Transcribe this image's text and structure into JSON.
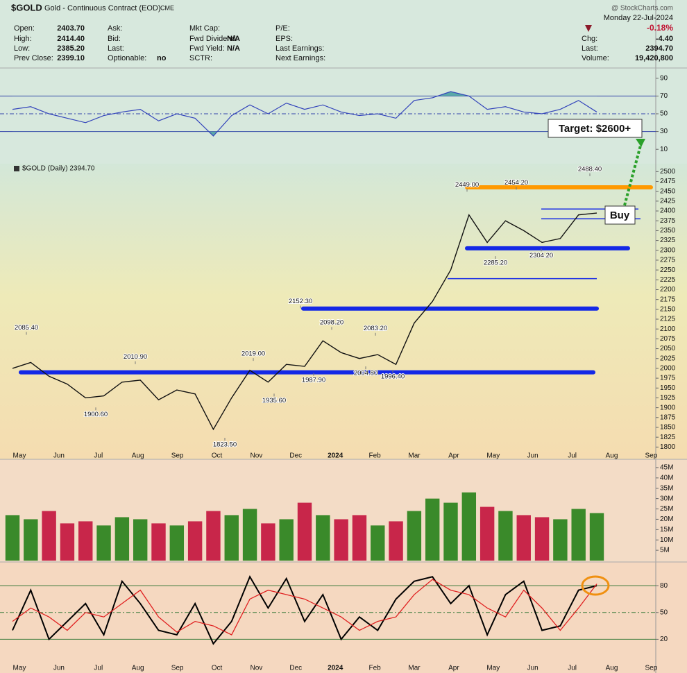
{
  "header": {
    "symbol": "$GOLD",
    "name": "Gold - Continuous Contract (EOD)",
    "exchange": "CME",
    "source": "@ StockCharts.com",
    "date": "Monday  22-Jul-2024",
    "change_pct": "-0.18%",
    "fields": [
      [
        {
          "label": "Open:",
          "value": "2403.70"
        },
        {
          "label": "High:",
          "value": "2414.40"
        },
        {
          "label": "Low:",
          "value": "2385.20"
        },
        {
          "label": "Prev Close:",
          "value": "2399.10"
        }
      ],
      [
        {
          "label": "Ask:"
        },
        {
          "label": "Bid:"
        },
        {
          "label": "Last:"
        },
        {
          "label": "Optionable:",
          "value": "no"
        }
      ],
      [
        {
          "label": "Mkt Cap:"
        },
        {
          "label": "Fwd Dividend:",
          "value": "N/A"
        },
        {
          "label": "Fwd Yield:",
          "value": "N/A"
        },
        {
          "label": "SCTR:"
        }
      ],
      [
        {
          "label": "P/E:"
        },
        {
          "label": "EPS:"
        },
        {
          "label": "Last Earnings:"
        },
        {
          "label": "Next Earnings:"
        }
      ],
      [
        {
          "label": "Chg:",
          "value": "-4.40"
        },
        {
          "label": "Last:",
          "value": "2394.70"
        },
        {
          "label": "Volume:",
          "value": "19,420,800"
        }
      ]
    ]
  },
  "x_axis": {
    "labels": [
      "May",
      "Jun",
      "Jul",
      "Aug",
      "Sep",
      "Oct",
      "Nov",
      "Dec",
      "2024",
      "Feb",
      "Mar",
      "Apr",
      "May",
      "Jun",
      "Jul",
      "Aug",
      "Sep"
    ]
  },
  "chart_data": [
    {
      "type": "line",
      "color": "#3344bb",
      "fill_color": "#5aa8a8",
      "categories": [
        null,
        null,
        null,
        null,
        null,
        null,
        null,
        null,
        null,
        null,
        null,
        null,
        null,
        null,
        null,
        null,
        null,
        null,
        null,
        null,
        null,
        null,
        null,
        null,
        null,
        null,
        null,
        null,
        null,
        null,
        null,
        null,
        null
      ],
      "values": [
        55,
        58,
        50,
        45,
        40,
        48,
        52,
        55,
        42,
        50,
        45,
        25,
        48,
        60,
        50,
        62,
        55,
        60,
        52,
        48,
        50,
        45,
        65,
        68,
        75,
        70,
        55,
        58,
        52,
        50,
        55,
        65,
        52
      ],
      "ylim": [
        0,
        100
      ],
      "yticks": [
        10,
        30,
        50,
        70,
        90
      ],
      "hlines": [
        70,
        50,
        30
      ]
    },
    {
      "type": "line",
      "title": "$GOLD (Daily) 2394.70",
      "color": "#111111",
      "categories": [
        null,
        null,
        null,
        null,
        null,
        null,
        null,
        null,
        null,
        null,
        null,
        null,
        null,
        null,
        null,
        null,
        null,
        null,
        null,
        null,
        null,
        null,
        null,
        null,
        null,
        null,
        null,
        null,
        null,
        null,
        null,
        null,
        null
      ],
      "values": [
        2000,
        2015,
        1980,
        1960,
        1925,
        1930,
        1965,
        1970,
        1920,
        1945,
        1935,
        1845,
        1925,
        1995,
        1965,
        2010,
        2005,
        2070,
        2040,
        2025,
        2035,
        2010,
        2115,
        2170,
        2250,
        2390,
        2320,
        2375,
        2350,
        2320,
        2330,
        2390,
        2394.7
      ],
      "ylim": [
        1790,
        2520
      ],
      "yticks": [
        1800,
        1825,
        1850,
        1875,
        1900,
        1925,
        1950,
        1975,
        2000,
        2025,
        2050,
        2075,
        2100,
        2125,
        2150,
        2175,
        2200,
        2225,
        2250,
        2275,
        2300,
        2325,
        2350,
        2375,
        2400,
        2425,
        2450,
        2475,
        2500
      ],
      "annotations": [
        {
          "value": 2085.4,
          "label": "2085.40"
        },
        {
          "value": 1900.6,
          "label": "1900.60"
        },
        {
          "value": 2010.9,
          "label": "2010.90"
        },
        {
          "value": 1823.5,
          "label": "1823.50"
        },
        {
          "value": 2019,
          "label": "2019.00"
        },
        {
          "value": 1935.6,
          "label": "1935.60"
        },
        {
          "value": 2152.3,
          "label": "2152.30"
        },
        {
          "value": 1987.9,
          "label": "1987.90"
        },
        {
          "value": 2098.2,
          "label": "2098.20"
        },
        {
          "value": 2004.8,
          "label": "2004.80"
        },
        {
          "value": 2083.2,
          "label": "2083.20"
        },
        {
          "value": 1996.4,
          "label": "1996.40"
        },
        {
          "value": 2449,
          "label": "2449.00"
        },
        {
          "value": 2454.2,
          "label": "2454.20"
        },
        {
          "value": 2285.2,
          "label": "2285.20"
        },
        {
          "value": 2304.2,
          "label": "2304.20"
        },
        {
          "value": 2488.4,
          "label": "2488.40"
        }
      ],
      "levels": [
        {
          "value": 1990,
          "color": "#1428e6",
          "style": "thick"
        },
        {
          "value": 2152,
          "color": "#1428e6",
          "style": "thick"
        },
        {
          "value": 2305,
          "color": "#1428e6",
          "style": "thick"
        },
        {
          "value": 2460,
          "color": "#ff9900",
          "style": "thick"
        },
        {
          "value": 2228,
          "color": "#1428e6",
          "style": "thin"
        },
        {
          "value": 2405,
          "color": "#1428e6",
          "style": "thin"
        },
        {
          "value": 2380,
          "color": "#1428e6",
          "style": "thin"
        }
      ],
      "callouts": [
        "Target: $2600+",
        "Buy"
      ]
    },
    {
      "type": "bar",
      "up_color": "#3a8a2a",
      "down_color": "#c8264a",
      "categories": [
        null,
        null,
        null,
        null,
        null,
        null,
        null,
        null,
        null,
        null,
        null,
        null,
        null,
        null,
        null,
        null,
        null,
        null,
        null,
        null,
        null,
        null,
        null,
        null,
        null,
        null,
        null,
        null,
        null,
        null,
        null,
        null,
        null
      ],
      "values": [
        22,
        20,
        24,
        18,
        19,
        17,
        21,
        20,
        18,
        17,
        19,
        24,
        22,
        25,
        18,
        20,
        28,
        22,
        20,
        22,
        17,
        19,
        24,
        30,
        28,
        33,
        26,
        24,
        22,
        21,
        20,
        25,
        23
      ],
      "ylim": [
        0,
        48
      ],
      "yticks": [
        {
          "value": 5,
          "label": "5M"
        },
        {
          "value": 10,
          "label": "10M"
        },
        {
          "value": 15,
          "label": "15M"
        },
        {
          "value": 20,
          "label": "20M"
        },
        {
          "value": 25,
          "label": "25M"
        },
        {
          "value": 30,
          "label": "30M"
        },
        {
          "value": 35,
          "label": "35M"
        },
        {
          "value": 40,
          "label": "40M"
        },
        {
          "value": 45,
          "label": "45M"
        }
      ]
    },
    {
      "type": "line",
      "categories": [
        null,
        null,
        null,
        null,
        null,
        null,
        null,
        null,
        null,
        null,
        null,
        null,
        null,
        null,
        null,
        null,
        null,
        null,
        null,
        null,
        null,
        null,
        null,
        null,
        null,
        null,
        null,
        null,
        null,
        null,
        null,
        null,
        null
      ],
      "series": [
        {
          "color": "#000000",
          "values": [
            30,
            75,
            20,
            40,
            60,
            25,
            85,
            60,
            30,
            25,
            60,
            15,
            40,
            90,
            55,
            88,
            40,
            70,
            20,
            45,
            30,
            65,
            85,
            90,
            60,
            80,
            25,
            70,
            85,
            30,
            35,
            75,
            80
          ]
        },
        {
          "color": "#e02020",
          "values": [
            40,
            55,
            45,
            30,
            50,
            45,
            60,
            75,
            45,
            28,
            40,
            35,
            25,
            65,
            75,
            70,
            65,
            55,
            45,
            30,
            40,
            45,
            70,
            87,
            75,
            70,
            55,
            45,
            75,
            55,
            30,
            55,
            82
          ]
        }
      ],
      "ylim": [
        -10,
        105
      ],
      "yticks": [
        20,
        50,
        80
      ],
      "hlines": [
        80,
        50,
        20
      ]
    }
  ]
}
